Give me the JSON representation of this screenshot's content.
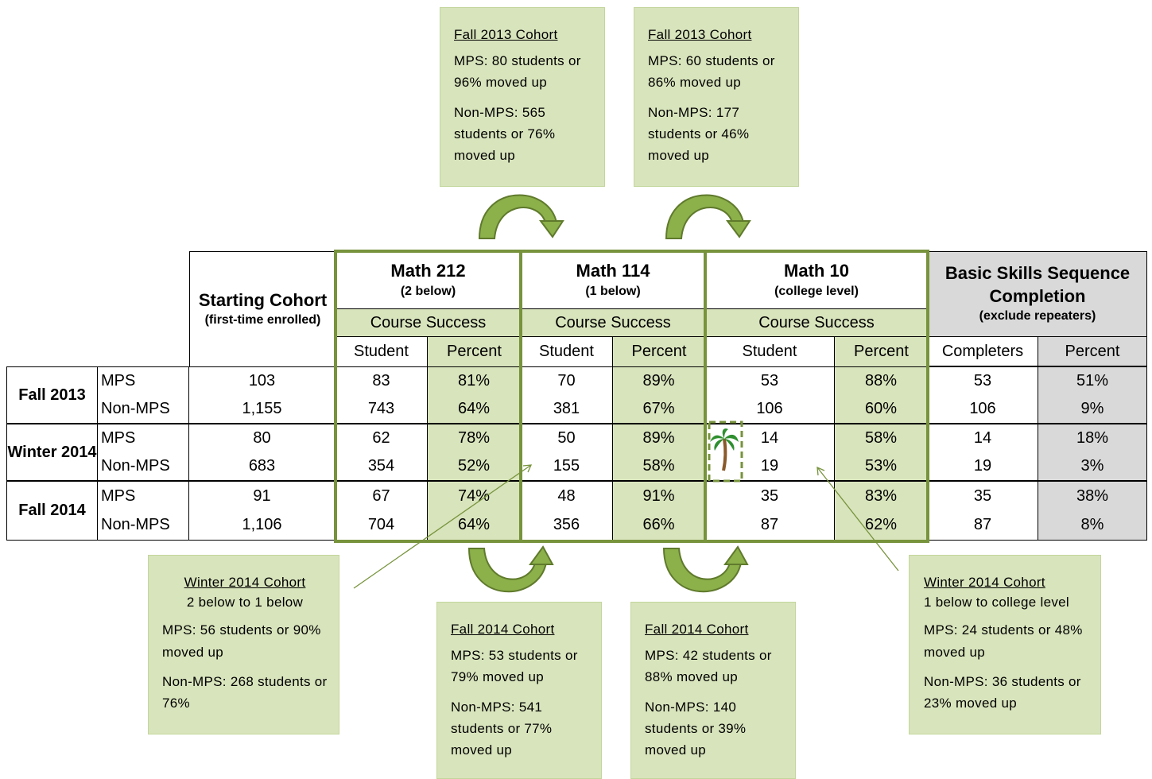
{
  "callouts": [
    {
      "title": "Fall 2013 Cohort",
      "paragraphs": [
        "MPS: 80 students or 96% moved up",
        "Non-MPS: 565 students or 76% moved up"
      ]
    },
    {
      "title": "Fall 2013 Cohort",
      "paragraphs": [
        "MPS: 60 students or 86% moved up",
        "Non-MPS: 177 students or 46% moved up"
      ]
    },
    {
      "title": "Winter 2014 Cohort",
      "subtitle": "2 below to 1 below",
      "paragraphs": [
        "MPS: 56 students or 90% moved up",
        "Non-MPS: 268 students or 76%"
      ]
    },
    {
      "title": "Fall 2014 Cohort",
      "paragraphs": [
        "MPS: 53 students or 79% moved up",
        "Non-MPS: 541 students or 77% moved up"
      ]
    },
    {
      "title": "Fall 2014 Cohort",
      "paragraphs": [
        "MPS: 42 students or 88% moved up",
        "Non-MPS: 140 students or 39% moved up"
      ]
    },
    {
      "title": "Winter 2014 Cohort",
      "subtitle": "1 below to college level",
      "paragraphs": [
        "MPS: 24 students or 48% moved up",
        "Non-MPS: 36 students or 23% moved up"
      ]
    }
  ],
  "table": {
    "starting": {
      "title": "Starting Cohort",
      "subtitle": "(first-time enrolled)"
    },
    "courses": [
      {
        "title": "Math 212",
        "subtitle": "(2 below)",
        "band": "Course Success",
        "columns": [
          "Student",
          "Percent"
        ]
      },
      {
        "title": "Math 114",
        "subtitle": "(1 below)",
        "band": "Course Success",
        "columns": [
          "Student",
          "Percent"
        ]
      },
      {
        "title": "Math 10",
        "subtitle": "(college level)",
        "band": "Course Success",
        "columns": [
          "Student",
          "Percent"
        ]
      }
    ],
    "completion": {
      "title": "Basic Skills Sequence Completion",
      "subtitle": "(exclude repeaters)",
      "columns": [
        "Completers",
        "Percent"
      ]
    },
    "terms": [
      {
        "term": "Fall 2013",
        "rows": [
          {
            "group": "MPS",
            "cells": [
              "103",
              "83",
              "81%",
              "70",
              "89%",
              "53",
              "88%",
              "53",
              "51%"
            ]
          },
          {
            "group": "Non-MPS",
            "cells": [
              "1,155",
              "743",
              "64%",
              "381",
              "67%",
              "106",
              "60%",
              "106",
              "9%"
            ]
          }
        ]
      },
      {
        "term": "Winter 2014",
        "rows": [
          {
            "group": "MPS",
            "cells": [
              "80",
              "62",
              "78%",
              "50",
              "89%",
              "14",
              "58%",
              "14",
              "18%"
            ]
          },
          {
            "group": "Non-MPS",
            "cells": [
              "683",
              "354",
              "52%",
              "155",
              "58%",
              "19",
              "53%",
              "19",
              "3%"
            ]
          }
        ]
      },
      {
        "term": "Fall 2014",
        "rows": [
          {
            "group": "MPS",
            "cells": [
              "91",
              "67",
              "74%",
              "48",
              "91%",
              "35",
              "83%",
              "35",
              "38%"
            ]
          },
          {
            "group": "Non-MPS",
            "cells": [
              "1,106",
              "704",
              "64%",
              "356",
              "66%",
              "87",
              "62%",
              "87",
              "8%"
            ]
          }
        ]
      }
    ]
  }
}
